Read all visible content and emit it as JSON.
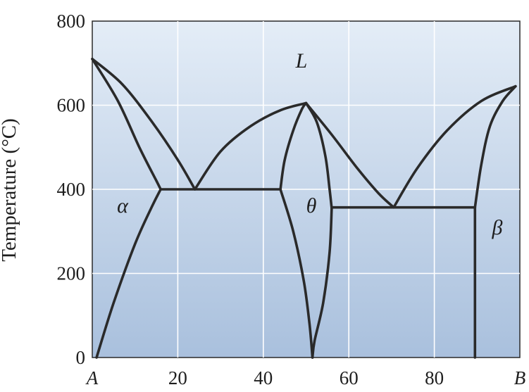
{
  "colors": {
    "plot_top": "#e4edf7",
    "plot_bottom": "#a9c0dd",
    "grid": "#ffffff",
    "lines": "#2a2a2a",
    "text": "#1e1e1e"
  },
  "chart_data": {
    "type": "line",
    "ylabel": "Temperature (°C)",
    "xlim": [
      0,
      100
    ],
    "ylim": [
      0,
      800
    ],
    "grid": true,
    "x_ticks": [
      "A",
      "20",
      "40",
      "60",
      "80",
      "B"
    ],
    "y_ticks": [
      "0",
      "200",
      "400",
      "600",
      "800"
    ],
    "phase_labels": [
      "L",
      "α",
      "θ",
      "β"
    ],
    "series": [
      {
        "x": [
          0,
          6,
          11,
          15,
          16
        ],
        "y": [
          710,
          610,
          500,
          420,
          400
        ]
      },
      {
        "x": [
          0,
          7,
          14,
          20,
          24
        ],
        "y": [
          710,
          650,
          560,
          470,
          400
        ]
      },
      {
        "x": [
          24,
          30,
          37,
          44,
          50
        ],
        "y": [
          400,
          490,
          550,
          588,
          605
        ]
      },
      {
        "x": [
          16,
          44
        ],
        "y": [
          400,
          400
        ]
      },
      {
        "x": [
          1,
          5,
          10,
          14,
          16
        ],
        "y": [
          0,
          130,
          270,
          360,
          400
        ]
      },
      {
        "x": [
          44,
          45,
          47,
          49,
          50
        ],
        "y": [
          400,
          470,
          540,
          590,
          605
        ]
      },
      {
        "x": [
          50,
          52.5,
          54.5,
          55.5,
          56
        ],
        "y": [
          605,
          560,
          480,
          400,
          355
        ]
      },
      {
        "x": [
          44,
          47,
          49.5,
          50.8,
          51.5
        ],
        "y": [
          400,
          300,
          180,
          80,
          0
        ]
      },
      {
        "x": [
          56,
          55.5,
          54,
          52,
          51.5
        ],
        "y": [
          355,
          250,
          130,
          40,
          0
        ]
      },
      {
        "x": [
          50,
          56,
          62,
          67,
          70.5
        ],
        "y": [
          605,
          530,
          450,
          390,
          357
        ]
      },
      {
        "x": [
          70.5,
          76,
          83,
          91,
          99
        ],
        "y": [
          357,
          450,
          540,
          610,
          645
        ]
      },
      {
        "x": [
          56,
          89.5
        ],
        "y": [
          357,
          357
        ]
      },
      {
        "x": [
          89.5,
          91,
          93,
          96,
          99
        ],
        "y": [
          357,
          460,
          550,
          610,
          645
        ]
      },
      {
        "x": [
          89.5,
          89.5
        ],
        "y": [
          357,
          0
        ]
      }
    ]
  }
}
